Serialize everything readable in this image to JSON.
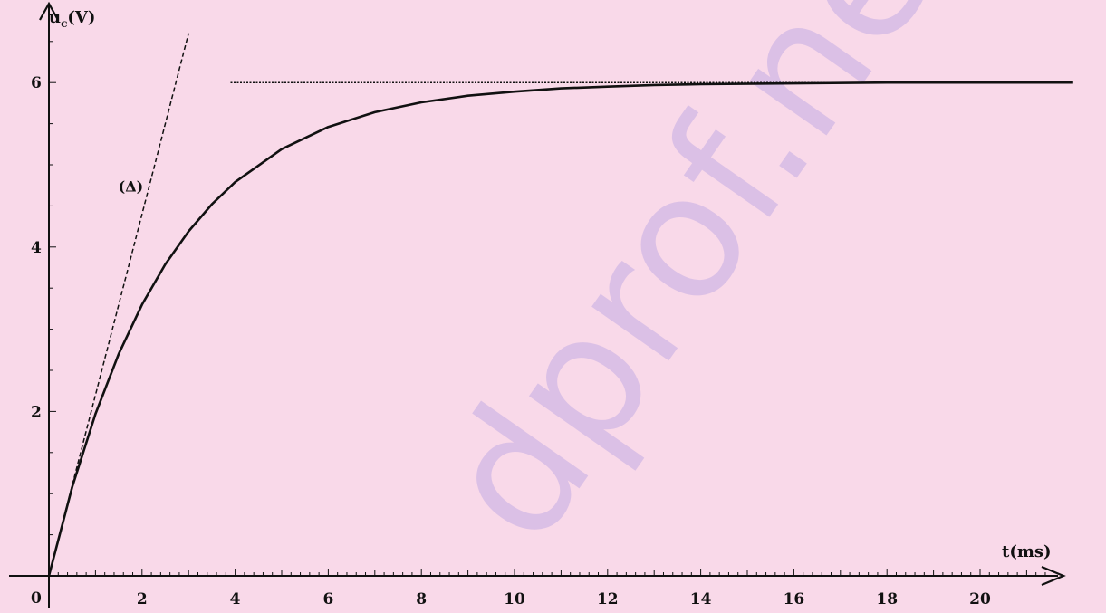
{
  "chart_data": {
    "type": "line",
    "title": "",
    "xlabel": "t(ms)",
    "ylabel": "u",
    "ylabel_sub": "c",
    "ylabel_unit": "(V)",
    "origin_label": "0",
    "xlim": [
      0,
      22
    ],
    "ylim": [
      0,
      6.5
    ],
    "xticks": [
      2,
      4,
      6,
      8,
      10,
      12,
      14,
      16,
      18,
      20
    ],
    "xtick_labels": [
      "2",
      "4",
      "6",
      "8",
      "10",
      "12",
      "14",
      "16",
      "18",
      "20"
    ],
    "yticks": [
      2,
      4,
      6
    ],
    "ytick_labels": [
      "2",
      "4",
      "6"
    ],
    "grid": false,
    "series": [
      {
        "style": "solid",
        "x": [
          0,
          0.5,
          1,
          1.5,
          2,
          2.5,
          3,
          3.5,
          4,
          5,
          6,
          7,
          8,
          9,
          10,
          11,
          12,
          13,
          14,
          16,
          18,
          20,
          22
        ],
        "y": [
          0,
          1.08,
          1.97,
          2.7,
          3.3,
          3.79,
          4.19,
          4.52,
          4.79,
          5.19,
          5.46,
          5.64,
          5.76,
          5.84,
          5.89,
          5.93,
          5.95,
          5.97,
          5.98,
          5.99,
          6.0,
          6.0,
          6.0
        ]
      },
      {
        "style": "dashed",
        "label": "(Δ)",
        "x": [
          0,
          3.0
        ],
        "y": [
          0,
          6.6
        ]
      },
      {
        "style": "dotted",
        "x": [
          3.9,
          22
        ],
        "y": [
          6.0,
          6.0
        ]
      }
    ],
    "annotations": [
      {
        "text": "(Δ)",
        "x": 1.2,
        "y": 4.85
      }
    ]
  },
  "watermark": {
    "text": "dprof.net",
    "color": "#2b2bd6"
  }
}
